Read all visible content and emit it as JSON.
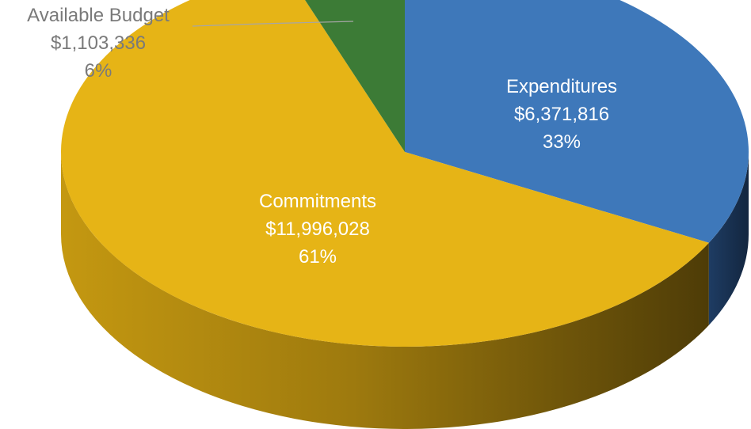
{
  "chart_data": {
    "type": "pie",
    "title": "",
    "three_d": true,
    "start_angle_deg": 0,
    "direction": "clockwise",
    "slices": [
      {
        "category": "Expenditures",
        "value": 6371816,
        "value_label": "$6,371,816",
        "percent_label": "33%",
        "color": "#3E78BA",
        "label_color": "#ffffff"
      },
      {
        "category": "Commitments",
        "value": 11996028,
        "value_label": "$11,996,028",
        "percent_label": "61%",
        "color": "#E6B416",
        "label_color": "#ffffff"
      },
      {
        "category": "Available Budget",
        "value": 1103336,
        "value_label": "$1,103,336",
        "percent_label": "6%",
        "color": "#3C7B36",
        "label_color": "#7a7a7a"
      }
    ],
    "legend": "none"
  }
}
